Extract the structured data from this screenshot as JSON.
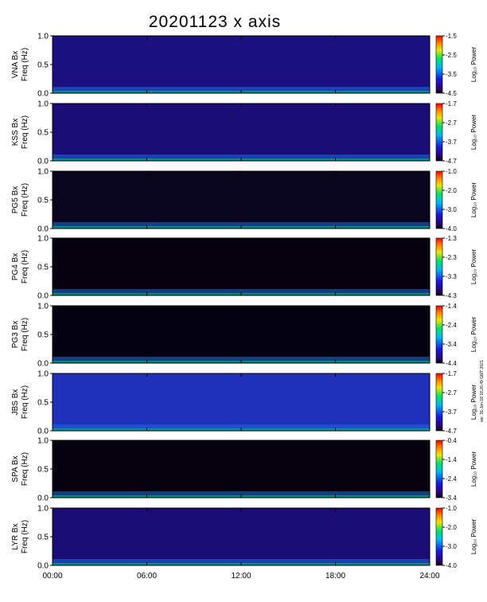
{
  "title": "20201123 x axis",
  "colorbar_title": "Log₁₀ Power",
  "side_note": "ver. 31-Jan-18 18:26:49 GMT 2021",
  "chart_data": {
    "type": "heatmap",
    "x_ticks": [
      "00:00",
      "06:00",
      "12:00",
      "18:00",
      "24:00"
    ],
    "xlim_hours": [
      0,
      24
    ],
    "y_ticks": [
      "0.0",
      "0.5",
      "1.0"
    ],
    "ylim_hz": [
      0,
      1.0
    ],
    "panels": [
      {
        "station": "VNA Bx",
        "ylabel2": "Freq (Hz)",
        "cbar": [
          "-1.5",
          "-2.5",
          "-3.5",
          "-4.5"
        ]
      },
      {
        "station": "KSS Bx",
        "ylabel2": "Freq (Hz)",
        "cbar": [
          "-1.7",
          "-2.7",
          "-3.7",
          "-4.7"
        ]
      },
      {
        "station": "PG5 Bx",
        "ylabel2": "Freq (Hz)",
        "cbar": [
          "-1.0",
          "-2.0",
          "-3.0",
          "-4.0"
        ]
      },
      {
        "station": "PG4 Bx",
        "ylabel2": "Freq (Hz)",
        "cbar": [
          "-1.3",
          "-2.3",
          "-3.3",
          "-4.3"
        ]
      },
      {
        "station": "PG3 Bx",
        "ylabel2": "Freq (Hz)",
        "cbar": [
          "-1.4",
          "-2.4",
          "-3.4",
          "-4.4"
        ]
      },
      {
        "station": "JBS Bx",
        "ylabel2": "Freq (Hz)",
        "cbar": [
          "-1.7",
          "-2.7",
          "-3.7",
          "-4.7"
        ]
      },
      {
        "station": "SPA Bx",
        "ylabel2": "Freq (Hz)",
        "cbar": [
          "-0.4",
          "-1.4",
          "-2.4",
          "-3.4"
        ]
      },
      {
        "station": "LYR Bx",
        "ylabel2": "Freq (Hz)",
        "cbar": [
          "-1.0",
          "-2.0",
          "-3.0",
          "-4.0"
        ]
      }
    ]
  }
}
